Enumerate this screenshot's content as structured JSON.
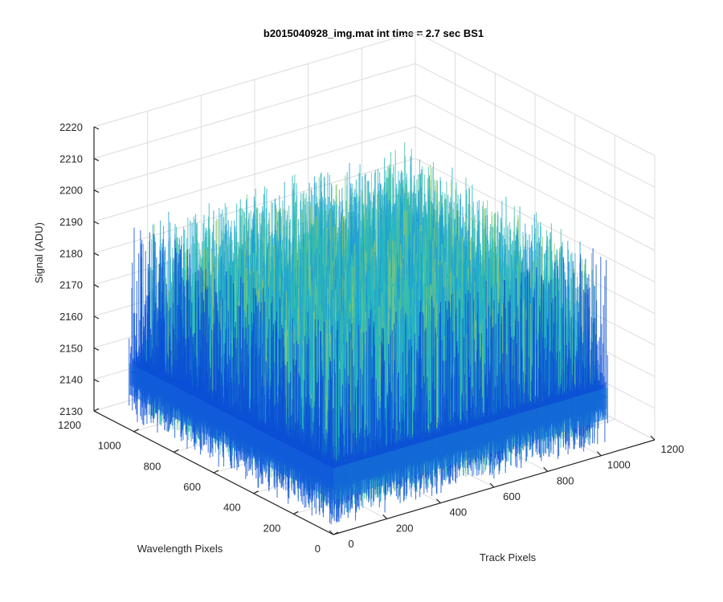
{
  "chart_data": {
    "type": "surface",
    "title": "b2015040928_img.mat int time = 2.7 sec   BS1",
    "zlabel": "Signal (ADU)",
    "ylabel": "Wavelength Pixels",
    "xlabel": "Track Pixels",
    "zlim": [
      2130,
      2220
    ],
    "xlim": [
      0,
      1200
    ],
    "ylim": [
      0,
      1200
    ],
    "z_ticks": [
      "2130",
      "2140",
      "2150",
      "2160",
      "2170",
      "2180",
      "2190",
      "2200",
      "2210",
      "2220"
    ],
    "y_ticks": [
      "0",
      "200",
      "400",
      "600",
      "800",
      "1000",
      "1200"
    ],
    "x_ticks": [
      "0",
      "200",
      "400",
      "600",
      "800",
      "1000",
      "1200"
    ],
    "surface": {
      "x_range": [
        0,
        1024
      ],
      "y_range": [
        0,
        1024
      ],
      "mean_signal": 2148,
      "noise_min": 2132,
      "noise_max": 2196,
      "colormap": [
        "#0b4fd6",
        "#1a72e0",
        "#1e9ad8",
        "#20b4c4",
        "#3cc0a8",
        "#8fc870"
      ]
    },
    "grid": true
  }
}
